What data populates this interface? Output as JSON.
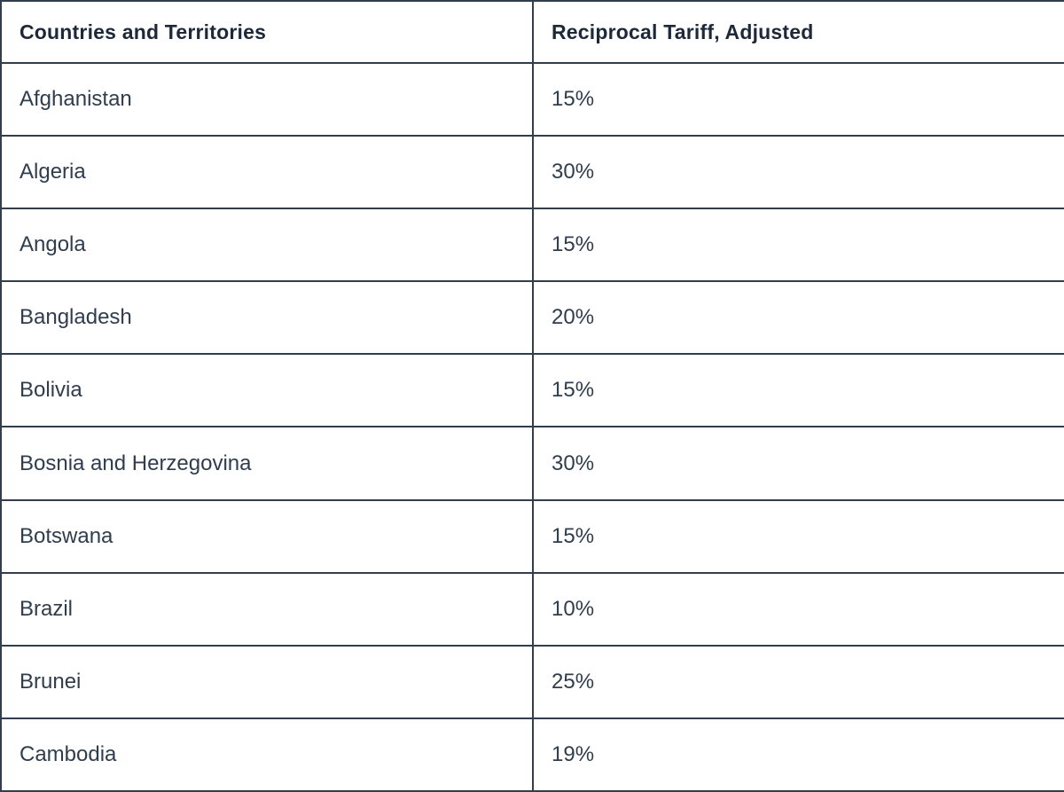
{
  "table": {
    "headers": {
      "country": "Countries and Territories",
      "tariff": "Reciprocal Tariff, Adjusted"
    },
    "rows": [
      {
        "country": "Afghanistan",
        "tariff": "15%"
      },
      {
        "country": "Algeria",
        "tariff": "30%"
      },
      {
        "country": "Angola",
        "tariff": "15%"
      },
      {
        "country": "Bangladesh",
        "tariff": "20%"
      },
      {
        "country": "Bolivia",
        "tariff": "15%"
      },
      {
        "country": "Bosnia and Herzegovina",
        "tariff": "30%"
      },
      {
        "country": "Botswana",
        "tariff": "15%"
      },
      {
        "country": "Brazil",
        "tariff": "10%"
      },
      {
        "country": "Brunei",
        "tariff": "25%"
      },
      {
        "country": "Cambodia",
        "tariff": "19%"
      }
    ]
  },
  "chart_data": {
    "type": "table",
    "title": "",
    "columns": [
      "Countries and Territories",
      "Reciprocal Tariff, Adjusted"
    ],
    "rows": [
      [
        "Afghanistan",
        "15%"
      ],
      [
        "Algeria",
        "30%"
      ],
      [
        "Angola",
        "15%"
      ],
      [
        "Bangladesh",
        "20%"
      ],
      [
        "Bolivia",
        "15%"
      ],
      [
        "Bosnia and Herzegovina",
        "30%"
      ],
      [
        "Botswana",
        "15%"
      ],
      [
        "Brazil",
        "10%"
      ],
      [
        "Brunei",
        "25%"
      ],
      [
        "Cambodia",
        "19%"
      ]
    ],
    "tariff_values_percent": [
      15,
      30,
      15,
      20,
      15,
      30,
      15,
      10,
      25,
      19
    ]
  },
  "colors": {
    "border": "#333e4d",
    "header_text": "#1d2838",
    "cell_text": "#2f3d4d",
    "background": "#ffffff"
  }
}
